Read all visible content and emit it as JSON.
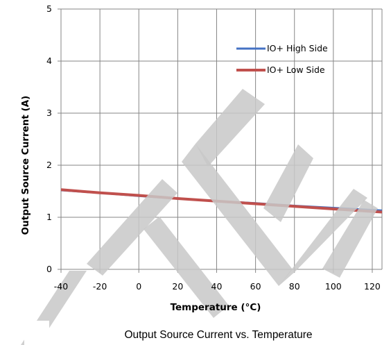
{
  "chart_data": {
    "type": "line",
    "title": "",
    "caption": "Output Source Current vs. Temperature",
    "xlabel": "Temperature  (°C)",
    "ylabel": "Output Source Current (A)",
    "xlim": [
      -40,
      125
    ],
    "ylim": [
      0,
      5
    ],
    "x_ticks": [
      -40,
      -20,
      0,
      20,
      40,
      60,
      80,
      100,
      120
    ],
    "y_ticks": [
      0,
      1,
      2,
      3,
      4,
      5
    ],
    "grid": true,
    "legend_position": "top-right",
    "series": [
      {
        "name": "IO+ High Side",
        "color": "#4472C4",
        "x": [
          -40,
          -20,
          0,
          20,
          40,
          60,
          80,
          100,
          125
        ],
        "y": [
          1.52,
          1.47,
          1.41,
          1.36,
          1.31,
          1.27,
          1.22,
          1.18,
          1.13
        ]
      },
      {
        "name": "IO+ Low Side",
        "color": "#C0504D",
        "x": [
          -40,
          -20,
          0,
          20,
          40,
          60,
          80,
          100,
          125
        ],
        "y": [
          1.53,
          1.47,
          1.42,
          1.36,
          1.31,
          1.26,
          1.21,
          1.16,
          1.1
        ]
      }
    ],
    "watermark": {
      "type": "TI-logo-watermark",
      "color": "#c8c8c8"
    }
  }
}
